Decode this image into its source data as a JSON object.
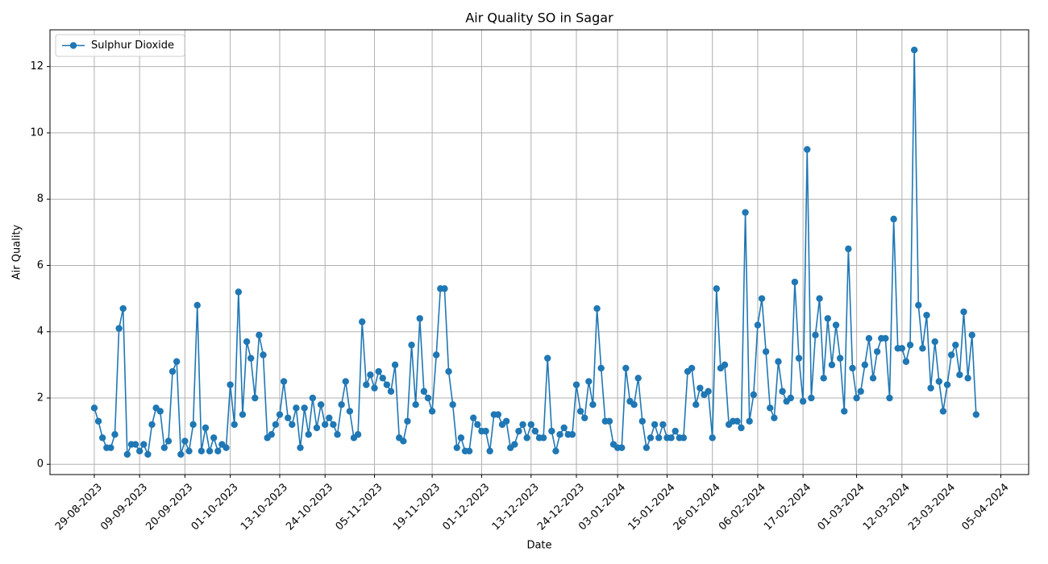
{
  "chart_data": {
    "type": "line",
    "title": "Air Quality SO in Sagar",
    "x_label": "Date",
    "y_label": "Air Quality",
    "x": [
      "2023-08-29",
      "2023-08-30",
      "2023-08-31",
      "2023-09-01",
      "2023-09-02",
      "2023-09-03",
      "2023-09-04",
      "2023-09-05",
      "2023-09-06",
      "2023-09-07",
      "2023-09-08",
      "2023-09-09",
      "2023-09-10",
      "2023-09-11",
      "2023-09-12",
      "2023-09-13",
      "2023-09-14",
      "2023-09-15",
      "2023-09-16",
      "2023-09-17",
      "2023-09-18",
      "2023-09-19",
      "2023-09-20",
      "2023-09-21",
      "2023-09-22",
      "2023-09-23",
      "2023-09-24",
      "2023-09-25",
      "2023-09-26",
      "2023-09-27",
      "2023-09-28",
      "2023-09-29",
      "2023-09-30",
      "2023-10-01",
      "2023-10-02",
      "2023-10-03",
      "2023-10-04",
      "2023-10-05",
      "2023-10-06",
      "2023-10-07",
      "2023-10-08",
      "2023-10-09",
      "2023-10-10",
      "2023-10-11",
      "2023-10-12",
      "2023-10-13",
      "2023-10-14",
      "2023-10-15",
      "2023-10-16",
      "2023-10-17",
      "2023-10-18",
      "2023-10-19",
      "2023-10-20",
      "2023-10-21",
      "2023-10-22",
      "2023-10-23",
      "2023-10-24",
      "2023-10-25",
      "2023-10-26",
      "2023-10-27",
      "2023-10-28",
      "2023-10-29",
      "2023-10-30",
      "2023-10-31",
      "2023-11-01",
      "2023-11-02",
      "2023-11-03",
      "2023-11-04",
      "2023-11-05",
      "2023-11-06",
      "2023-11-07",
      "2023-11-08",
      "2023-11-09",
      "2023-11-10",
      "2023-11-11",
      "2023-11-12",
      "2023-11-13",
      "2023-11-14",
      "2023-11-15",
      "2023-11-16",
      "2023-11-17",
      "2023-11-18",
      "2023-11-19",
      "2023-11-20",
      "2023-11-21",
      "2023-11-22",
      "2023-11-23",
      "2023-11-24",
      "2023-11-25",
      "2023-11-26",
      "2023-11-27",
      "2023-11-28",
      "2023-11-29",
      "2023-11-30",
      "2023-12-01",
      "2023-12-02",
      "2023-12-03",
      "2023-12-04",
      "2023-12-05",
      "2023-12-06",
      "2023-12-07",
      "2023-12-08",
      "2023-12-09",
      "2023-12-10",
      "2023-12-11",
      "2023-12-12",
      "2023-12-13",
      "2023-12-14",
      "2023-12-15",
      "2023-12-16",
      "2023-12-17",
      "2023-12-18",
      "2023-12-19",
      "2023-12-20",
      "2023-12-21",
      "2023-12-22",
      "2023-12-23",
      "2023-12-24",
      "2023-12-25",
      "2023-12-26",
      "2023-12-27",
      "2023-12-28",
      "2023-12-29",
      "2023-12-30",
      "2023-12-31",
      "2024-01-01",
      "2024-01-02",
      "2024-01-03",
      "2024-01-04",
      "2024-01-05",
      "2024-01-06",
      "2024-01-07",
      "2024-01-08",
      "2024-01-09",
      "2024-01-10",
      "2024-01-11",
      "2024-01-12",
      "2024-01-13",
      "2024-01-14",
      "2024-01-15",
      "2024-01-16",
      "2024-01-17",
      "2024-01-18",
      "2024-01-19",
      "2024-01-20",
      "2024-01-21",
      "2024-01-22",
      "2024-01-23",
      "2024-01-24",
      "2024-01-25",
      "2024-01-26",
      "2024-01-27",
      "2024-01-28",
      "2024-01-29",
      "2024-01-30",
      "2024-01-31",
      "2024-02-01",
      "2024-02-02",
      "2024-02-03",
      "2024-02-04",
      "2024-02-05",
      "2024-02-06",
      "2024-02-07",
      "2024-02-08",
      "2024-02-09",
      "2024-02-10",
      "2024-02-11",
      "2024-02-12",
      "2024-02-13",
      "2024-02-14",
      "2024-02-15",
      "2024-02-16",
      "2024-02-17",
      "2024-02-18",
      "2024-02-19",
      "2024-02-20",
      "2024-02-21",
      "2024-02-22",
      "2024-02-23",
      "2024-02-24",
      "2024-02-25",
      "2024-02-26",
      "2024-02-27",
      "2024-02-28",
      "2024-02-29",
      "2024-03-01",
      "2024-03-02",
      "2024-03-03",
      "2024-03-04",
      "2024-03-05",
      "2024-03-06",
      "2024-03-07",
      "2024-03-08",
      "2024-03-09",
      "2024-03-10",
      "2024-03-11",
      "2024-03-12",
      "2024-03-13",
      "2024-03-14",
      "2024-03-15",
      "2024-03-16",
      "2024-03-17",
      "2024-03-18",
      "2024-03-19",
      "2024-03-20",
      "2024-03-21",
      "2024-03-22",
      "2024-03-23",
      "2024-03-24",
      "2024-03-25",
      "2024-03-26",
      "2024-03-27",
      "2024-03-28",
      "2024-03-29",
      "2024-03-30"
    ],
    "series": [
      {
        "name": "Sulphur Dioxide",
        "color": "#1f77b4",
        "values": [
          1.7,
          1.3,
          0.8,
          0.5,
          0.5,
          0.9,
          4.1,
          4.7,
          0.3,
          0.6,
          0.6,
          0.4,
          0.6,
          0.3,
          1.2,
          1.7,
          1.6,
          0.5,
          0.7,
          2.8,
          3.1,
          0.3,
          0.7,
          0.4,
          1.2,
          4.8,
          0.4,
          1.1,
          0.4,
          0.8,
          0.4,
          0.6,
          0.5,
          2.4,
          1.2,
          5.2,
          1.5,
          3.7,
          3.2,
          2.0,
          3.9,
          3.3,
          0.8,
          0.9,
          1.2,
          1.5,
          2.5,
          1.4,
          1.2,
          1.7,
          0.5,
          1.7,
          0.9,
          2.0,
          1.1,
          1.8,
          1.2,
          1.4,
          1.2,
          0.9,
          1.8,
          2.5,
          1.6,
          0.8,
          0.9,
          4.3,
          2.4,
          2.7,
          2.3,
          2.8,
          2.6,
          2.4,
          2.2,
          3.0,
          0.8,
          0.7,
          1.3,
          3.6,
          1.8,
          4.4,
          2.2,
          2.0,
          1.6,
          3.3,
          5.3,
          5.3,
          2.8,
          1.8,
          0.5,
          0.8,
          0.4,
          0.4,
          1.4,
          1.2,
          1.0,
          1.0,
          0.4,
          1.5,
          1.5,
          1.2,
          1.3,
          0.5,
          0.6,
          1.0,
          1.2,
          0.8,
          1.2,
          1.0,
          0.8,
          0.8,
          3.2,
          1.0,
          0.4,
          0.9,
          1.1,
          0.9,
          0.9,
          2.4,
          1.6,
          1.4,
          2.5,
          1.8,
          4.7,
          2.9,
          1.3,
          1.3,
          0.6,
          0.5,
          0.5,
          2.9,
          1.9,
          1.8,
          2.6,
          1.3,
          0.5,
          0.8,
          1.2,
          0.8,
          1.2,
          0.8,
          0.8,
          1.0,
          0.8,
          0.8,
          2.8,
          2.9,
          1.8,
          2.3,
          2.1,
          2.2,
          0.8,
          5.3,
          2.9,
          3.0,
          1.2,
          1.3,
          1.3,
          1.1,
          7.6,
          1.3,
          2.1,
          4.2,
          5.0,
          3.4,
          1.7,
          1.4,
          3.1,
          2.2,
          1.9,
          2.0,
          5.5,
          3.2,
          1.9,
          9.5,
          2.0,
          3.9,
          5.0,
          2.6,
          4.4,
          3.0,
          4.2,
          3.2,
          1.6,
          6.5,
          2.9,
          2.0,
          2.2,
          3.0,
          3.8,
          2.6,
          3.4,
          3.8,
          3.8,
          2.0,
          7.4,
          3.5,
          3.5,
          3.1,
          3.6,
          12.5,
          4.8,
          3.5,
          4.5,
          2.3,
          3.7,
          2.5,
          1.6,
          2.4,
          3.3,
          3.6,
          2.7,
          4.6,
          2.6,
          3.9,
          1.5
        ]
      }
    ],
    "xlim": [
      "2023-08-18T06:00",
      "2024-04-11T18:00"
    ],
    "xticks": [
      {
        "value": "2023-08-29",
        "label": "29-08-2023"
      },
      {
        "value": "2023-09-09",
        "label": "09-09-2023"
      },
      {
        "value": "2023-09-20",
        "label": "20-09-2023"
      },
      {
        "value": "2023-10-01",
        "label": "01-10-2023"
      },
      {
        "value": "2023-10-13",
        "label": "13-10-2023"
      },
      {
        "value": "2023-10-24",
        "label": "24-10-2023"
      },
      {
        "value": "2023-11-05",
        "label": "05-11-2023"
      },
      {
        "value": "2023-11-19",
        "label": "19-11-2023"
      },
      {
        "value": "2023-12-01",
        "label": "01-12-2023"
      },
      {
        "value": "2023-12-13",
        "label": "13-12-2023"
      },
      {
        "value": "2023-12-24",
        "label": "24-12-2023"
      },
      {
        "value": "2024-01-03",
        "label": "03-01-2024"
      },
      {
        "value": "2024-01-15",
        "label": "15-01-2024"
      },
      {
        "value": "2024-01-26",
        "label": "26-01-2024"
      },
      {
        "value": "2024-02-06",
        "label": "06-02-2024"
      },
      {
        "value": "2024-02-17",
        "label": "17-02-2024"
      },
      {
        "value": "2024-03-01",
        "label": "01-03-2024"
      },
      {
        "value": "2024-03-12",
        "label": "12-03-2024"
      },
      {
        "value": "2024-03-23",
        "label": "23-03-2024"
      },
      {
        "value": "2024-04-05",
        "label": "05-04-2024"
      }
    ],
    "ylim": [
      -0.31,
      13.11
    ],
    "yticks": [
      0,
      2,
      4,
      6,
      8,
      10,
      12
    ],
    "grid": true,
    "legend": "upper left"
  }
}
